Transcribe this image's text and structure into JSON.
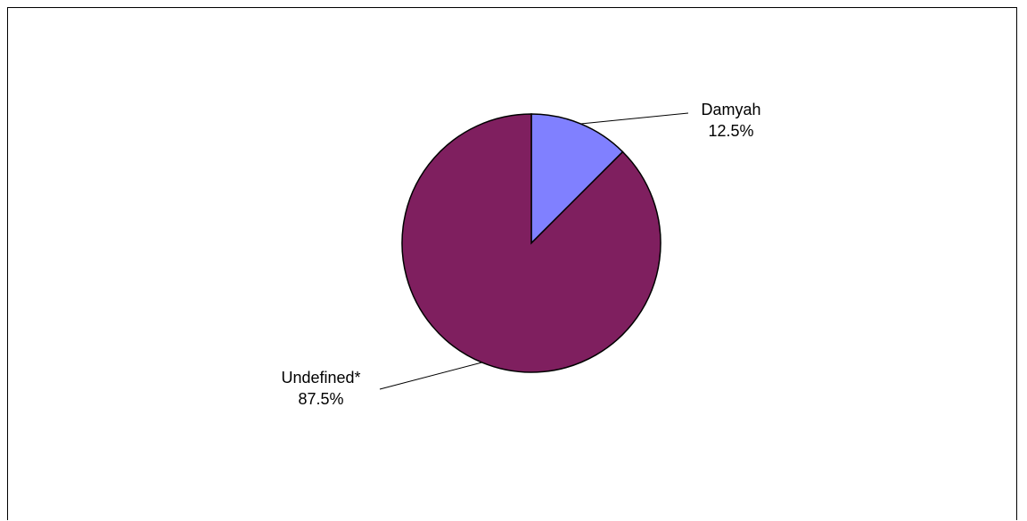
{
  "chart_data": {
    "type": "pie",
    "title": "",
    "slices": [
      {
        "label": "Damyah",
        "value": 12.5,
        "value_label": "12.5%",
        "color": "#8080FF"
      },
      {
        "label": "Undefined*",
        "value": 87.5,
        "value_label": "87.5%",
        "color": "#7F1F5F"
      }
    ],
    "start_angle_deg": 0,
    "direction": "clockwise",
    "outline_color": "#000000",
    "legend": "none"
  }
}
